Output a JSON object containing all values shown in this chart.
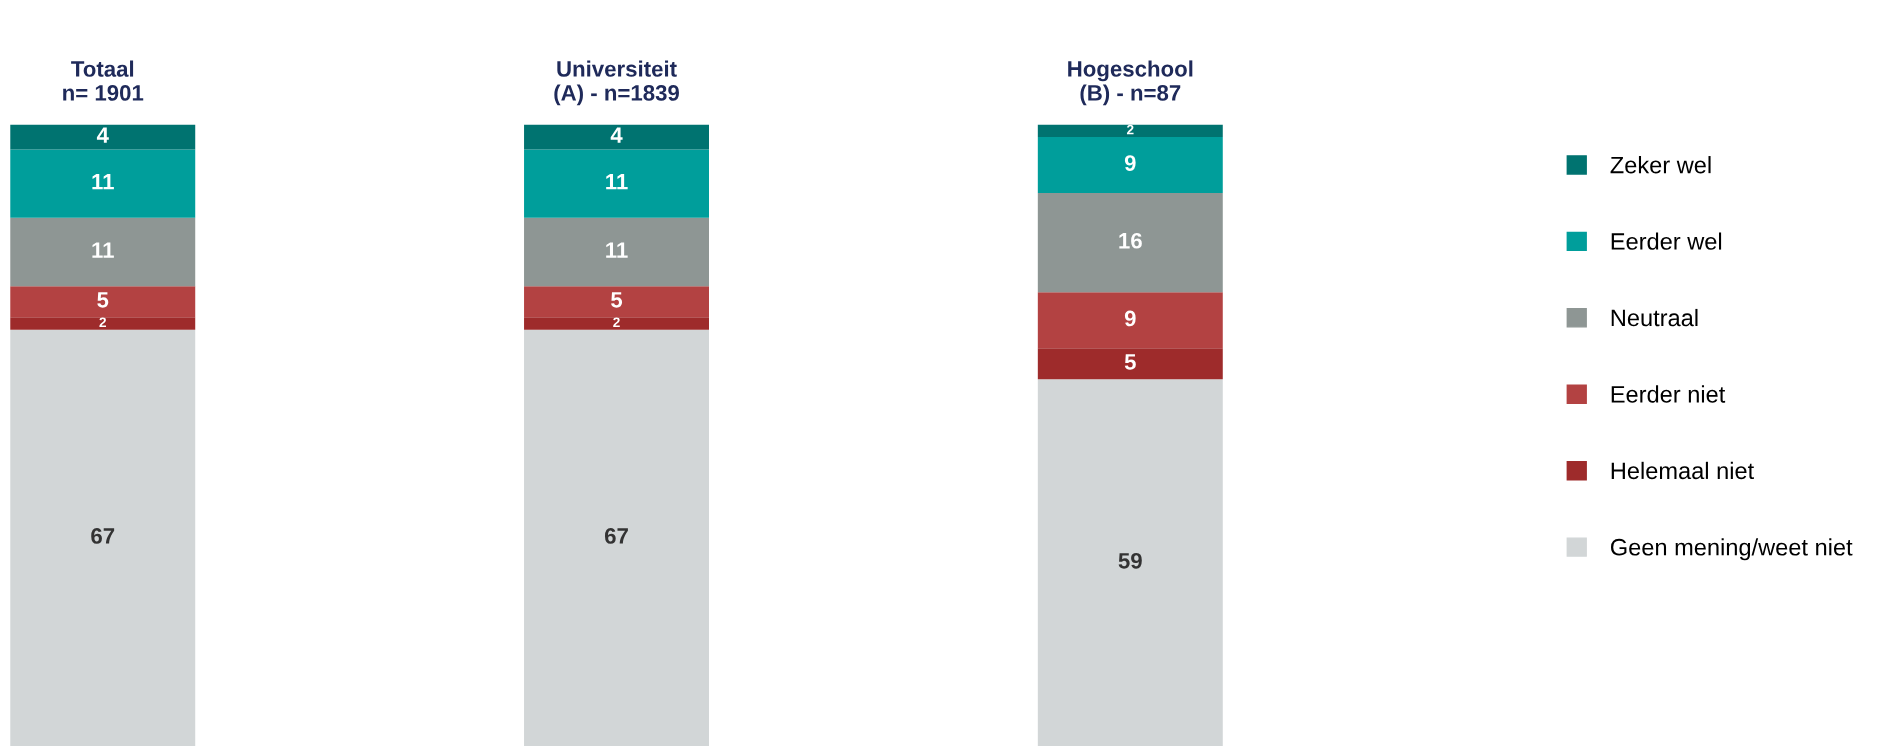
{
  "chart_data": {
    "type": "bar",
    "stacked": true,
    "data_labels": true,
    "legend": "right",
    "ylim": [
      0,
      100
    ],
    "categories": [
      "Totaal\nn= 1901",
      "Universiteit\n(A) - n=1839",
      "Hogeschool\n(B) - n=87"
    ],
    "series": [
      {
        "name": "Geen mening/weet niet",
        "color": "#d2d6d7",
        "values": [
          67,
          67,
          59
        ]
      },
      {
        "name": "Helemaal niet",
        "color": "#9e2b2b",
        "values": [
          2,
          2,
          5
        ]
      },
      {
        "name": "Eerder niet",
        "color": "#b34242",
        "values": [
          5,
          5,
          9
        ]
      },
      {
        "name": "Neutraal",
        "color": "#8e9694",
        "values": [
          11,
          11,
          16
        ]
      },
      {
        "name": "Eerder wel",
        "color": "#009e9b",
        "values": [
          11,
          11,
          9
        ]
      },
      {
        "name": "Zeker wel",
        "color": "#007370",
        "values": [
          4,
          4,
          2
        ]
      }
    ]
  }
}
